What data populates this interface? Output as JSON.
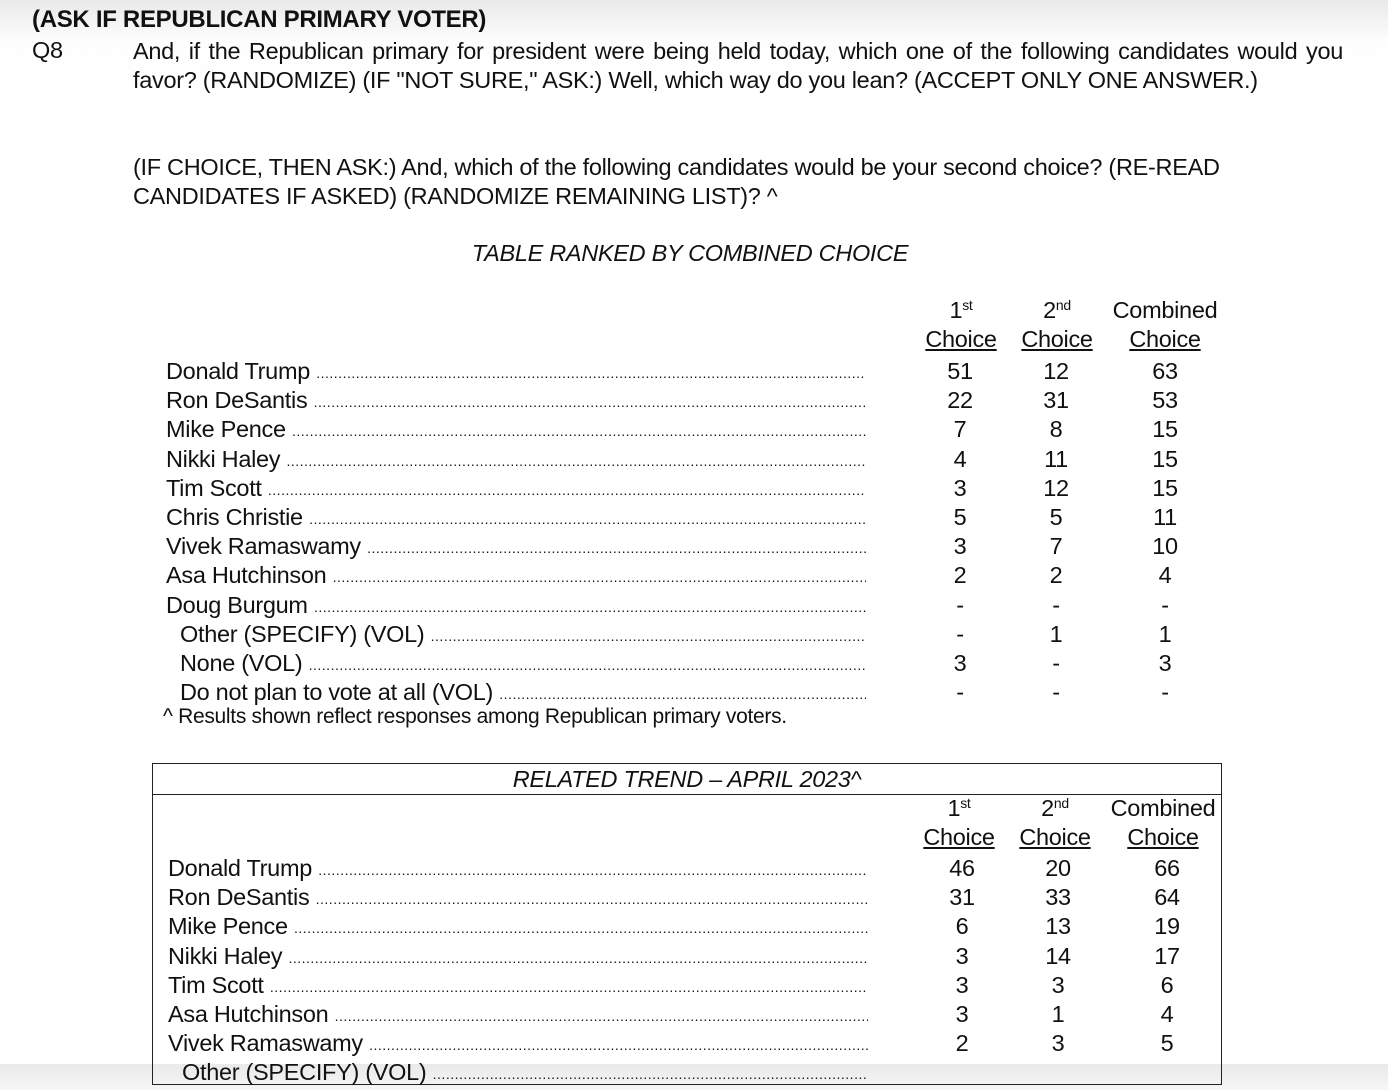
{
  "header": "(ASK IF REPUBLICAN PRIMARY VOTER)",
  "question": {
    "number": "Q8",
    "text": "And, if the Republican primary for president were being held today, which one of the following candidates would you favor? (RANDOMIZE) (IF \"NOT SURE,\" ASK:) Well, which way do you lean? (ACCEPT ONLY ONE ANSWER.)",
    "followup": "(IF CHOICE, THEN ASK:) And, which of the following candidates would be your second choice? (RE-READ CANDIDATES IF ASKED) (RANDOMIZE REMAINING LIST)? ^"
  },
  "subtitle": "TABLE RANKED BY COMBINED CHOICE",
  "columns": {
    "c1_num": "1",
    "c1_sup": "st",
    "c1_word": "Choice",
    "c2_num": "2",
    "c2_sup": "nd",
    "c2_word": "Choice",
    "c3_top": "Combined",
    "c3_word": "Choice"
  },
  "table1": [
    {
      "label": "Donald Trump",
      "v": [
        "51",
        "12",
        "63"
      ]
    },
    {
      "label": "Ron DeSantis",
      "v": [
        "22",
        "31",
        "53"
      ]
    },
    {
      "label": "Mike Pence",
      "v": [
        "7",
        "8",
        "15"
      ]
    },
    {
      "label": "Nikki Haley",
      "v": [
        "4",
        "11",
        "15"
      ]
    },
    {
      "label": "Tim Scott",
      "v": [
        "3",
        "12",
        "15"
      ]
    },
    {
      "label": "Chris Christie",
      "v": [
        "5",
        "5",
        "11"
      ]
    },
    {
      "label": "Vivek Ramaswamy",
      "v": [
        "3",
        "7",
        "10"
      ]
    },
    {
      "label": "Asa Hutchinson",
      "v": [
        "2",
        "2",
        "4"
      ]
    },
    {
      "label": "Doug Burgum",
      "v": [
        "-",
        "-",
        "-"
      ]
    },
    {
      "label": "Other (SPECIFY) (VOL)",
      "indent": true,
      "v": [
        "-",
        "1",
        "1"
      ]
    },
    {
      "label": "None (VOL)",
      "indent": true,
      "v": [
        "3",
        "-",
        "3"
      ]
    },
    {
      "label": "Do not plan to vote at all (VOL)",
      "indent": true,
      "v": [
        "-",
        "-",
        "-"
      ]
    }
  ],
  "note": "^ Results shown reflect responses among Republican primary voters.",
  "trend": {
    "title": "RELATED TREND – APRIL 2023^",
    "rows": [
      {
        "label": "Donald Trump",
        "v": [
          "46",
          "20",
          "66"
        ]
      },
      {
        "label": "Ron DeSantis",
        "v": [
          "31",
          "33",
          "64"
        ]
      },
      {
        "label": "Mike Pence",
        "v": [
          "6",
          "13",
          "19"
        ]
      },
      {
        "label": "Nikki Haley",
        "v": [
          "3",
          "14",
          "17"
        ]
      },
      {
        "label": "Tim Scott",
        "v": [
          "3",
          "3",
          "6"
        ]
      },
      {
        "label": "Asa Hutchinson",
        "v": [
          "3",
          "1",
          "4"
        ]
      },
      {
        "label": "Vivek Ramaswamy",
        "v": [
          "2",
          "3",
          "5"
        ]
      },
      {
        "label": "Other (SPECIFY) (VOL)",
        "indent": true,
        "v": [
          "",
          "",
          ""
        ]
      }
    ]
  }
}
